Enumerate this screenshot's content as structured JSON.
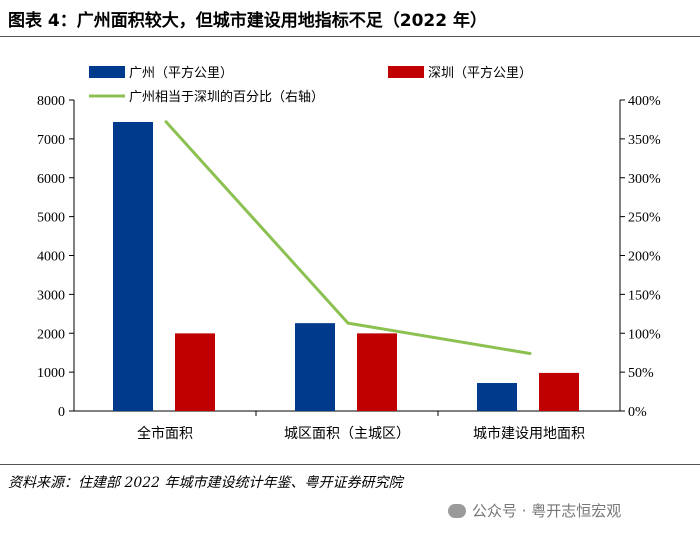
{
  "figure": {
    "title": "图表 4：广州面积较大，但城市建设用地指标不足（2022 年）",
    "source": "资料来源：住建部 2022 年城市建设统计年鉴、粤开证券研究院",
    "watermark": "公众号 · 粤开志恒宏观"
  },
  "colors": {
    "guangzhou": "#003a8c",
    "shenzhen": "#c00000",
    "ratio": "#8cc152"
  },
  "chart_data": {
    "type": "bar",
    "categories": [
      "全市面积",
      "城区面积（主城区）",
      "城市建设用地面积"
    ],
    "series": [
      {
        "name": "广州（平方公里）",
        "type": "bar",
        "axis": "left",
        "values": [
          7434,
          2260,
          720
        ]
      },
      {
        "name": "深圳（平方公里）",
        "type": "bar",
        "axis": "left",
        "values": [
          1997,
          1997,
          980
        ]
      },
      {
        "name": "广州相当于深圳的百分比（右轴）",
        "type": "line",
        "axis": "right",
        "values": [
          3.72,
          1.13,
          0.74
        ]
      }
    ],
    "ylim": [
      0,
      8000
    ],
    "yticks": [
      "0",
      "1000",
      "2000",
      "3000",
      "4000",
      "5000",
      "6000",
      "7000",
      "8000"
    ],
    "y2lim": [
      0,
      4
    ],
    "y2ticks": [
      "0%",
      "50%",
      "100%",
      "150%",
      "200%",
      "250%",
      "300%",
      "350%",
      "400%"
    ],
    "legend": "top",
    "grid": false
  }
}
